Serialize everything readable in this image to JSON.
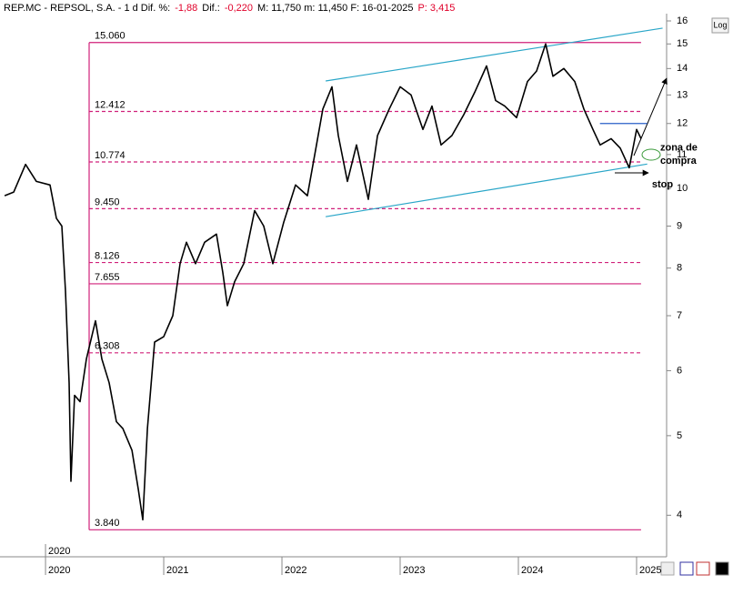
{
  "chart_data": {
    "type": "line",
    "header": [
      {
        "text": "REP.MC - REPSOL, S.A. - 1 d  Dif. %:",
        "color": "#000000"
      },
      {
        "text": "-1,88",
        "color": "#e0002a"
      },
      {
        "text": "Dif.:",
        "color": "#000000"
      },
      {
        "text": "-0,220",
        "color": "#e0002a"
      },
      {
        "text": "M: 11,750  m: 11,450  F: 16-01-2025",
        "color": "#000000"
      },
      {
        "text": "P: 3,415",
        "color": "#e0002a"
      }
    ],
    "log_button": "Log",
    "log_scale": true,
    "cursor_label": {
      "text": "2020",
      "x": 2020.0
    },
    "xlim": [
      2019.615,
      2025.254
    ],
    "xticks": [
      2020,
      2021,
      2022,
      2023,
      2024,
      2025
    ],
    "ylim": [
      3.56,
      16.33
    ],
    "yticks": [
      4,
      5,
      6,
      7,
      8,
      9,
      10,
      11,
      12,
      13,
      14,
      15,
      16
    ],
    "series": [
      {
        "name": "REP.MC",
        "color": "#000000",
        "x": [
          2019.654,
          2019.731,
          2019.831,
          2019.923,
          2020.038,
          2020.092,
          2020.138,
          2020.169,
          2020.2,
          2020.215,
          2020.246,
          2020.292,
          2020.346,
          2020.423,
          2020.477,
          2020.538,
          2020.6,
          2020.654,
          2020.731,
          2020.785,
          2020.823,
          2020.862,
          2020.923,
          2021.0,
          2021.077,
          2021.138,
          2021.192,
          2021.269,
          2021.346,
          2021.446,
          2021.5,
          2021.538,
          2021.6,
          2021.677,
          2021.769,
          2021.846,
          2021.923,
          2022.015,
          2022.115,
          2022.215,
          2022.292,
          2022.346,
          2022.423,
          2022.477,
          2022.554,
          2022.631,
          2022.731,
          2022.808,
          2022.908,
          2023.0,
          2023.092,
          2023.192,
          2023.269,
          2023.346,
          2023.438,
          2023.538,
          2023.631,
          2023.731,
          2023.808,
          2023.885,
          2023.985,
          2024.077,
          2024.154,
          2024.231,
          2024.292,
          2024.385,
          2024.477,
          2024.554,
          2024.631,
          2024.692,
          2024.785,
          2024.862,
          2024.938,
          2025.0,
          2025.038
        ],
        "values": [
          9.8,
          9.9,
          10.7,
          10.2,
          10.1,
          9.2,
          9.0,
          7.5,
          5.8,
          4.4,
          5.6,
          5.5,
          6.2,
          6.9,
          6.2,
          5.8,
          5.2,
          5.1,
          4.8,
          4.3,
          3.95,
          5.1,
          6.5,
          6.6,
          7.0,
          8.1,
          8.6,
          8.1,
          8.6,
          8.8,
          7.9,
          7.2,
          7.7,
          8.1,
          9.4,
          9.0,
          8.1,
          9.1,
          10.1,
          9.8,
          11.3,
          12.5,
          13.3,
          11.6,
          10.2,
          11.3,
          9.7,
          11.6,
          12.5,
          13.3,
          13.0,
          11.8,
          12.6,
          11.3,
          11.6,
          12.3,
          13.1,
          14.1,
          12.8,
          12.6,
          12.2,
          13.5,
          13.9,
          15.0,
          13.7,
          14.0,
          13.5,
          12.5,
          11.8,
          11.3,
          11.5,
          11.2,
          10.6,
          11.8,
          11.5
        ]
      }
    ],
    "levels": [
      {
        "value": 15.06,
        "label": "15.060",
        "style": "solid"
      },
      {
        "value": 12.412,
        "label": "12.412",
        "style": "dashed"
      },
      {
        "value": 10.774,
        "label": "10.774",
        "style": "dashed"
      },
      {
        "value": 9.45,
        "label": "9.450",
        "style": "dashed"
      },
      {
        "value": 8.126,
        "label": "8.126",
        "style": "dashed"
      },
      {
        "value": 7.655,
        "label": "7.655",
        "style": "solid"
      },
      {
        "value": 6.308,
        "label": "6.308",
        "style": "dashed"
      },
      {
        "value": 3.84,
        "label": "3.840",
        "style": "solid"
      }
    ],
    "levels_x": [
      2020.369,
      2025.038
    ],
    "levels_color": "#d0207a",
    "trendlines": [
      {
        "x": [
          2022.37,
          2025.22
        ],
        "values": [
          13.52,
          15.68
        ],
        "color": "#2aa6c8"
      },
      {
        "x": [
          2022.37,
          2025.09
        ],
        "values": [
          9.24,
          10.71
        ],
        "color": "#2aa6c8"
      },
      {
        "x": [
          2024.69,
          2025.09
        ],
        "values": [
          12.0,
          12.0
        ],
        "color": "#2a5fc8"
      }
    ],
    "annotations": [
      {
        "text": "zona de",
        "x": 2025.2,
        "value": 11.2
      },
      {
        "text": "compra",
        "x": 2025.2,
        "value": 10.8
      },
      {
        "text": "stop",
        "x": 2025.13,
        "value": 10.1
      }
    ]
  }
}
